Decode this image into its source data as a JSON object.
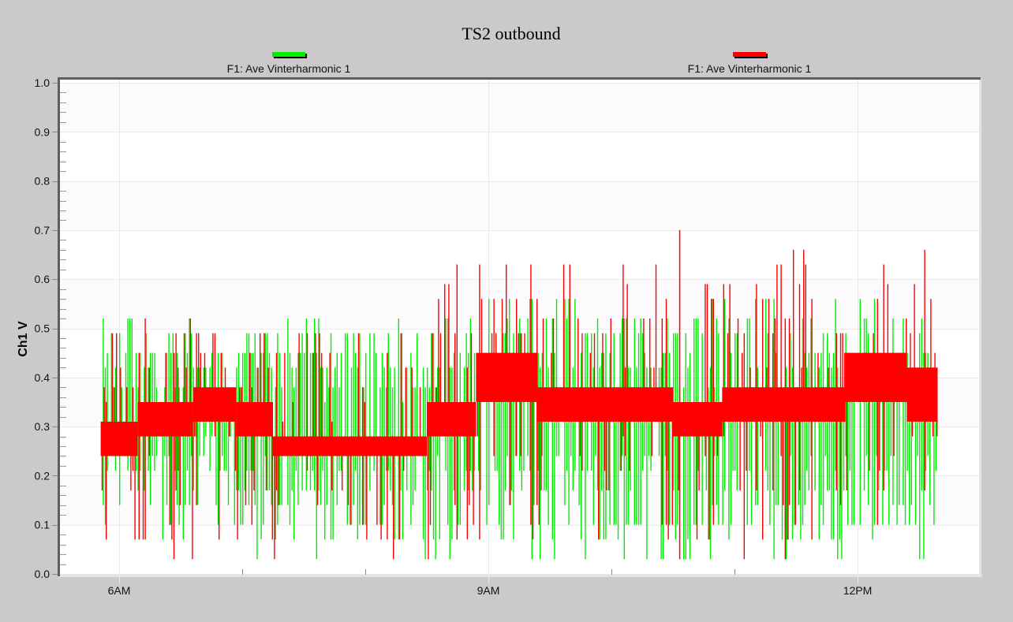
{
  "chart_data": {
    "type": "bar",
    "subtype": "vertical min-max range bars (time series)",
    "title": "TS2 outbound",
    "xlabel": "",
    "ylabel": "Ch1 V",
    "ylim": [
      0.0,
      1.0
    ],
    "yticks": [
      "0.0",
      "0.1",
      "0.2",
      "0.3",
      "0.4",
      "0.5",
      "0.6",
      "0.7",
      "0.8",
      "0.9",
      "1.0"
    ],
    "xticks": [
      "6AM",
      "9AM",
      "12PM"
    ],
    "xrange_hours": [
      5.75,
      12.95
    ],
    "data_span_hours": [
      5.85,
      12.65
    ],
    "grid": true,
    "legend_position": "top",
    "series": [
      {
        "name": "F1: Ave Vinterharmonic 1",
        "color": "#00ee00",
        "typical_min": 0.03,
        "typical_max": 0.56,
        "segments": [
          {
            "from": 5.85,
            "to": 7.0,
            "band_low": 0.07,
            "band_high": 0.52,
            "peak": 0.52
          },
          {
            "from": 7.0,
            "to": 8.5,
            "band_low": 0.03,
            "band_high": 0.52,
            "peak": 0.52
          },
          {
            "from": 8.5,
            "to": 10.5,
            "band_low": 0.03,
            "band_high": 0.56,
            "peak": 0.56
          },
          {
            "from": 10.5,
            "to": 12.65,
            "band_low": 0.03,
            "band_high": 0.56,
            "peak": 0.56
          }
        ]
      },
      {
        "name": "F1: Ave Vinterharmonic 1",
        "color": "#ff0000",
        "typical_min": 0.03,
        "typical_max": 0.66,
        "max_value": 0.7,
        "segments": [
          {
            "from": 5.85,
            "to": 6.15,
            "dense_low": 0.24,
            "dense_high": 0.31,
            "spike_high": 0.56
          },
          {
            "from": 6.15,
            "to": 6.6,
            "dense_low": 0.28,
            "dense_high": 0.35,
            "spike_high": 0.52
          },
          {
            "from": 6.6,
            "to": 6.95,
            "dense_low": 0.31,
            "dense_high": 0.38,
            "spike_high": 0.52
          },
          {
            "from": 6.95,
            "to": 7.25,
            "dense_low": 0.28,
            "dense_high": 0.35,
            "spike_high": 0.49
          },
          {
            "from": 7.25,
            "to": 8.5,
            "dense_low": 0.24,
            "dense_high": 0.28,
            "spike_high": 0.52
          },
          {
            "from": 8.5,
            "to": 8.9,
            "dense_low": 0.28,
            "dense_high": 0.35,
            "spike_high": 0.63
          },
          {
            "from": 8.9,
            "to": 9.4,
            "dense_low": 0.35,
            "dense_high": 0.45,
            "spike_high": 0.66
          },
          {
            "from": 9.4,
            "to": 10.5,
            "dense_low": 0.31,
            "dense_high": 0.38,
            "spike_high": 0.66
          },
          {
            "from": 10.5,
            "to": 10.9,
            "dense_low": 0.28,
            "dense_high": 0.35,
            "spike_high": 0.7
          },
          {
            "from": 10.9,
            "to": 11.9,
            "dense_low": 0.31,
            "dense_high": 0.38,
            "spike_high": 0.66
          },
          {
            "from": 11.9,
            "to": 12.4,
            "dense_low": 0.35,
            "dense_high": 0.45,
            "spike_high": 0.66
          },
          {
            "from": 12.4,
            "to": 12.65,
            "dense_low": 0.31,
            "dense_high": 0.42,
            "spike_high": 0.66
          }
        ]
      }
    ]
  },
  "legend": {
    "items": [
      {
        "label": "F1: Ave Vinterharmonic 1",
        "color": "#00ee00"
      },
      {
        "label": "F1: Ave Vinterharmonic 1",
        "color": "#ff0000"
      }
    ]
  },
  "colors": {
    "background": "#cbc9cc",
    "plot_background": "#ffffff",
    "plot_band": "#fdfafd",
    "axis": "#5e5e5e",
    "grid": "#ebe9eb"
  }
}
